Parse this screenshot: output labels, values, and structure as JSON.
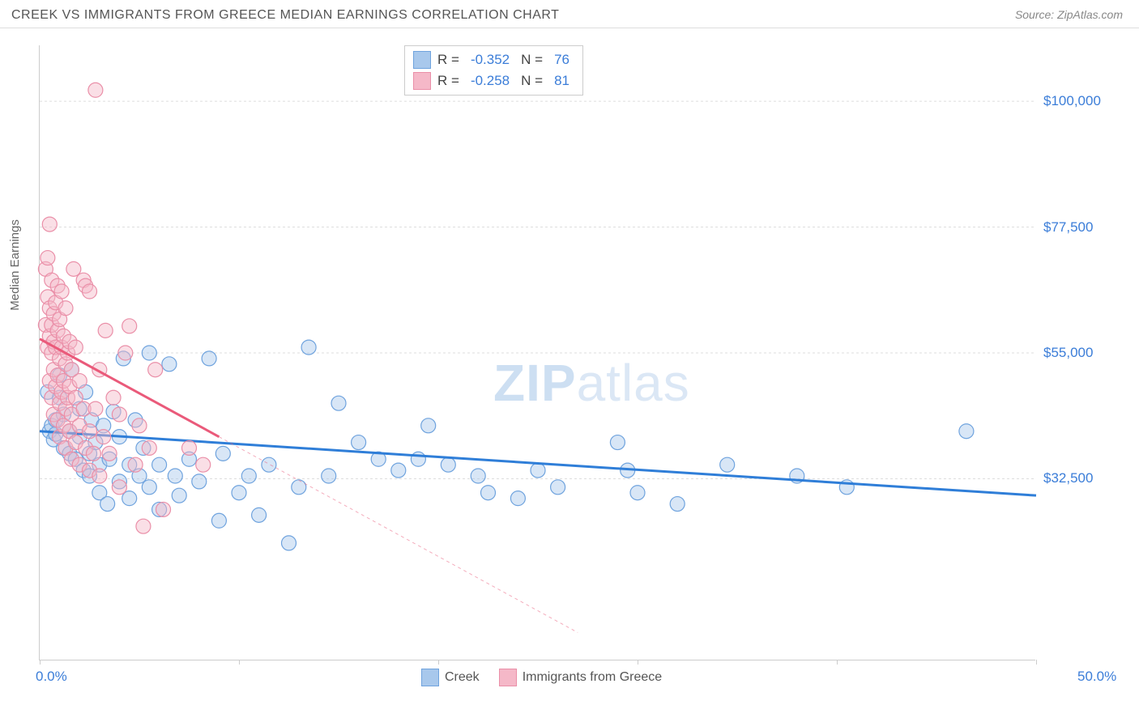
{
  "header": {
    "title": "CREEK VS IMMIGRANTS FROM GREECE MEDIAN EARNINGS CORRELATION CHART",
    "source_prefix": "Source: ",
    "source_name": "ZipAtlas.com"
  },
  "watermark": {
    "bold": "ZIP",
    "light": "atlas"
  },
  "chart": {
    "type": "scatter",
    "ylabel": "Median Earnings",
    "xlim": [
      0,
      50
    ],
    "ylim": [
      0,
      110000
    ],
    "x_tick_positions_pct": [
      0,
      10,
      20,
      30,
      40,
      50
    ],
    "x_start_label": "0.0%",
    "x_end_label": "50.0%",
    "y_gridlines": [
      {
        "value": 32500,
        "label": "$32,500"
      },
      {
        "value": 55000,
        "label": "$55,000"
      },
      {
        "value": 77500,
        "label": "$77,500"
      },
      {
        "value": 100000,
        "label": "$100,000"
      }
    ],
    "background_color": "#ffffff",
    "grid_color": "#dddddd",
    "axis_color": "#cccccc",
    "tick_label_color": "#3b7dd8",
    "marker_radius": 9,
    "marker_opacity": 0.45,
    "trend_line_width": 3,
    "series": [
      {
        "name": "Creek",
        "fill_color": "#a8c8ec",
        "stroke_color": "#6fa3de",
        "line_color": "#2f7ed8",
        "R": "-0.352",
        "N": "76",
        "trend": {
          "x1": 0,
          "y1": 41000,
          "x2": 50,
          "y2": 29500,
          "dash": false
        },
        "points": [
          [
            0.4,
            48000
          ],
          [
            0.5,
            41000
          ],
          [
            0.6,
            42000
          ],
          [
            0.7,
            39500
          ],
          [
            0.8,
            40500
          ],
          [
            0.8,
            43000
          ],
          [
            1.0,
            47000
          ],
          [
            1.0,
            51000
          ],
          [
            1.2,
            38000
          ],
          [
            1.2,
            44000
          ],
          [
            1.5,
            37000
          ],
          [
            1.5,
            41000
          ],
          [
            1.6,
            52000
          ],
          [
            1.8,
            36000
          ],
          [
            2.0,
            40000
          ],
          [
            2.0,
            45000
          ],
          [
            2.2,
            34000
          ],
          [
            2.3,
            48000
          ],
          [
            2.5,
            33000
          ],
          [
            2.5,
            37000
          ],
          [
            2.6,
            43000
          ],
          [
            2.8,
            39000
          ],
          [
            3.0,
            30000
          ],
          [
            3.0,
            35000
          ],
          [
            3.2,
            42000
          ],
          [
            3.4,
            28000
          ],
          [
            3.5,
            36000
          ],
          [
            3.7,
            44500
          ],
          [
            4.0,
            32000
          ],
          [
            4.0,
            40000
          ],
          [
            4.2,
            54000
          ],
          [
            4.5,
            35000
          ],
          [
            4.5,
            29000
          ],
          [
            4.8,
            43000
          ],
          [
            5.0,
            33000
          ],
          [
            5.2,
            38000
          ],
          [
            5.5,
            31000
          ],
          [
            5.5,
            55000
          ],
          [
            6.0,
            27000
          ],
          [
            6.0,
            35000
          ],
          [
            6.5,
            53000
          ],
          [
            6.8,
            33000
          ],
          [
            7.0,
            29500
          ],
          [
            7.5,
            36000
          ],
          [
            8.0,
            32000
          ],
          [
            8.5,
            54000
          ],
          [
            9.0,
            25000
          ],
          [
            9.2,
            37000
          ],
          [
            10.0,
            30000
          ],
          [
            10.5,
            33000
          ],
          [
            11.0,
            26000
          ],
          [
            11.5,
            35000
          ],
          [
            12.5,
            21000
          ],
          [
            13.0,
            31000
          ],
          [
            13.5,
            56000
          ],
          [
            14.5,
            33000
          ],
          [
            15.0,
            46000
          ],
          [
            16.0,
            39000
          ],
          [
            17.0,
            36000
          ],
          [
            18.0,
            34000
          ],
          [
            19.0,
            36000
          ],
          [
            19.5,
            42000
          ],
          [
            20.5,
            35000
          ],
          [
            22.0,
            33000
          ],
          [
            22.5,
            30000
          ],
          [
            24.0,
            29000
          ],
          [
            25.0,
            34000
          ],
          [
            26.0,
            31000
          ],
          [
            29.0,
            39000
          ],
          [
            29.5,
            34000
          ],
          [
            30.0,
            30000
          ],
          [
            32.0,
            28000
          ],
          [
            34.5,
            35000
          ],
          [
            38.0,
            33000
          ],
          [
            40.5,
            31000
          ],
          [
            46.5,
            41000
          ]
        ]
      },
      {
        "name": "Immigrants from Greece",
        "fill_color": "#f5b8c8",
        "stroke_color": "#ea8fa8",
        "line_color": "#ea5a7a",
        "R": "-0.258",
        "N": "81",
        "trend": {
          "x1": 0,
          "y1": 57500,
          "x2": 9,
          "y2": 40000,
          "dash": false
        },
        "trend_ext": {
          "x1": 9,
          "y1": 40000,
          "x2": 27,
          "y2": 5000,
          "dash": true
        },
        "points": [
          [
            0.3,
            60000
          ],
          [
            0.3,
            70000
          ],
          [
            0.4,
            56000
          ],
          [
            0.4,
            65000
          ],
          [
            0.4,
            72000
          ],
          [
            0.5,
            50000
          ],
          [
            0.5,
            58000
          ],
          [
            0.5,
            63000
          ],
          [
            0.5,
            78000
          ],
          [
            0.6,
            47000
          ],
          [
            0.6,
            55000
          ],
          [
            0.6,
            60000
          ],
          [
            0.6,
            68000
          ],
          [
            0.7,
            44000
          ],
          [
            0.7,
            52000
          ],
          [
            0.7,
            57000
          ],
          [
            0.7,
            62000
          ],
          [
            0.8,
            49000
          ],
          [
            0.8,
            56000
          ],
          [
            0.8,
            64000
          ],
          [
            0.9,
            43000
          ],
          [
            0.9,
            51000
          ],
          [
            0.9,
            59000
          ],
          [
            0.9,
            67000
          ],
          [
            1.0,
            40000
          ],
          [
            1.0,
            46000
          ],
          [
            1.0,
            54000
          ],
          [
            1.0,
            61000
          ],
          [
            1.1,
            48000
          ],
          [
            1.1,
            56000
          ],
          [
            1.1,
            66000
          ],
          [
            1.2,
            42000
          ],
          [
            1.2,
            50000
          ],
          [
            1.2,
            58000
          ],
          [
            1.3,
            38000
          ],
          [
            1.3,
            45000
          ],
          [
            1.3,
            53000
          ],
          [
            1.3,
            63000
          ],
          [
            1.4,
            47000
          ],
          [
            1.4,
            55000
          ],
          [
            1.5,
            41000
          ],
          [
            1.5,
            49000
          ],
          [
            1.5,
            57000
          ],
          [
            1.6,
            36000
          ],
          [
            1.6,
            44000
          ],
          [
            1.6,
            52000
          ],
          [
            1.7,
            70000
          ],
          [
            1.8,
            39000
          ],
          [
            1.8,
            47000
          ],
          [
            1.8,
            56000
          ],
          [
            2.0,
            35000
          ],
          [
            2.0,
            42000
          ],
          [
            2.0,
            50000
          ],
          [
            2.2,
            68000
          ],
          [
            2.2,
            45000
          ],
          [
            2.3,
            38000
          ],
          [
            2.3,
            67000
          ],
          [
            2.5,
            34000
          ],
          [
            2.5,
            41000
          ],
          [
            2.5,
            66000
          ],
          [
            2.7,
            37000
          ],
          [
            2.8,
            102000
          ],
          [
            2.8,
            45000
          ],
          [
            3.0,
            33000
          ],
          [
            3.0,
            52000
          ],
          [
            3.2,
            40000
          ],
          [
            3.3,
            59000
          ],
          [
            3.5,
            37000
          ],
          [
            3.7,
            47000
          ],
          [
            4.0,
            31000
          ],
          [
            4.0,
            44000
          ],
          [
            4.3,
            55000
          ],
          [
            4.5,
            59800
          ],
          [
            4.8,
            35000
          ],
          [
            5.0,
            42000
          ],
          [
            5.2,
            24000
          ],
          [
            5.5,
            38000
          ],
          [
            5.8,
            52000
          ],
          [
            6.2,
            27000
          ],
          [
            7.5,
            38000
          ],
          [
            8.2,
            35000
          ]
        ]
      }
    ],
    "stats_labels": {
      "R": "R =",
      "N": "N ="
    },
    "legend_label_1": "Creek",
    "legend_label_2": "Immigrants from Greece"
  }
}
